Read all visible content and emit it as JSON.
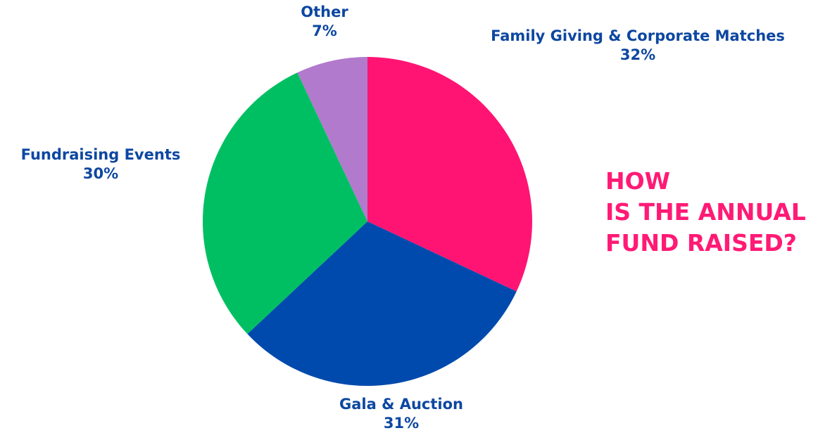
{
  "headline": {
    "line1": "HOW",
    "line2": "IS THE ANNUAL",
    "line3": "FUND RAISED?"
  },
  "chart_data": {
    "type": "pie",
    "title": "",
    "start": "top",
    "direction": "clockwise",
    "slices": [
      {
        "label": "Family Giving & Corporate Matches",
        "value": 32,
        "display": "32%",
        "color": "#ff1474"
      },
      {
        "label": "Gala & Auction",
        "value": 31,
        "display": "31%",
        "color": "#004aad"
      },
      {
        "label": "Fundraising Events",
        "value": 30,
        "display": "30%",
        "color": "#00bf63"
      },
      {
        "label": "Other",
        "value": 7,
        "display": "7%",
        "color": "#b17acc"
      }
    ],
    "label_color": "#0d47a1"
  }
}
